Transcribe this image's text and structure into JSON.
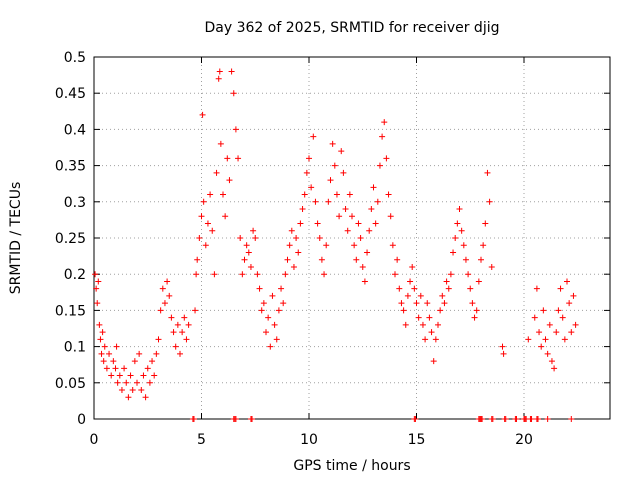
{
  "chart_data": {
    "type": "scatter",
    "title": "Day 362 of 2025, SRMTID for receiver djig",
    "xlabel": "GPS time / hours",
    "ylabel": "SRMTID / TECUs",
    "xlim": [
      0,
      24
    ],
    "ylim": [
      0,
      0.5
    ],
    "xticks": [
      0,
      5,
      10,
      15,
      20
    ],
    "xtick_labels": [
      "0",
      "5",
      "10",
      "15",
      "20"
    ],
    "yticks": [
      0,
      0.05,
      0.1,
      0.15,
      0.2,
      0.25,
      0.3,
      0.35,
      0.4,
      0.45,
      0.5
    ],
    "ytick_labels": [
      "0",
      "0.05",
      "0.1",
      "0.15",
      "0.2",
      "0.25",
      "0.3",
      "0.35",
      "0.4",
      "0.45",
      "0.5"
    ],
    "grid": true,
    "marker": "+",
    "marker_color": "#ff0000",
    "series": [
      {
        "name": "SRMTID",
        "points": [
          [
            0.05,
            0.2
          ],
          [
            0.1,
            0.18
          ],
          [
            0.15,
            0.16
          ],
          [
            0.2,
            0.19
          ],
          [
            0.25,
            0.13
          ],
          [
            0.3,
            0.11
          ],
          [
            0.35,
            0.09
          ],
          [
            0.4,
            0.12
          ],
          [
            0.45,
            0.08
          ],
          [
            0.5,
            0.1
          ],
          [
            0.6,
            0.07
          ],
          [
            0.7,
            0.09
          ],
          [
            0.8,
            0.06
          ],
          [
            0.9,
            0.08
          ],
          [
            1.0,
            0.07
          ],
          [
            1.05,
            0.1
          ],
          [
            1.1,
            0.05
          ],
          [
            1.2,
            0.06
          ],
          [
            1.3,
            0.04
          ],
          [
            1.4,
            0.07
          ],
          [
            1.5,
            0.05
          ],
          [
            1.6,
            0.03
          ],
          [
            1.7,
            0.06
          ],
          [
            1.8,
            0.04
          ],
          [
            1.9,
            0.08
          ],
          [
            2.0,
            0.05
          ],
          [
            2.1,
            0.09
          ],
          [
            2.2,
            0.04
          ],
          [
            2.3,
            0.06
          ],
          [
            2.4,
            0.03
          ],
          [
            2.5,
            0.07
          ],
          [
            2.6,
            0.05
          ],
          [
            2.7,
            0.08
          ],
          [
            2.8,
            0.06
          ],
          [
            2.9,
            0.09
          ],
          [
            3.0,
            0.11
          ],
          [
            3.1,
            0.15
          ],
          [
            3.2,
            0.18
          ],
          [
            3.3,
            0.16
          ],
          [
            3.4,
            0.19
          ],
          [
            3.5,
            0.17
          ],
          [
            3.6,
            0.14
          ],
          [
            3.7,
            0.12
          ],
          [
            3.8,
            0.1
          ],
          [
            3.9,
            0.13
          ],
          [
            4.0,
            0.09
          ],
          [
            4.1,
            0.12
          ],
          [
            4.2,
            0.14
          ],
          [
            4.3,
            0.11
          ],
          [
            4.4,
            0.13
          ],
          [
            4.7,
            0.15
          ],
          [
            4.75,
            0.2
          ],
          [
            4.8,
            0.22
          ],
          [
            4.9,
            0.25
          ],
          [
            5.0,
            0.28
          ],
          [
            5.05,
            0.42
          ],
          [
            5.1,
            0.3
          ],
          [
            5.2,
            0.24
          ],
          [
            5.3,
            0.27
          ],
          [
            5.4,
            0.31
          ],
          [
            5.5,
            0.26
          ],
          [
            5.6,
            0.2
          ],
          [
            5.7,
            0.34
          ],
          [
            5.8,
            0.47
          ],
          [
            5.85,
            0.48
          ],
          [
            5.9,
            0.38
          ],
          [
            6.0,
            0.31
          ],
          [
            6.1,
            0.28
          ],
          [
            6.2,
            0.36
          ],
          [
            6.3,
            0.33
          ],
          [
            6.4,
            0.48
          ],
          [
            6.5,
            0.45
          ],
          [
            6.6,
            0.4
          ],
          [
            6.7,
            0.36
          ],
          [
            6.8,
            0.25
          ],
          [
            6.9,
            0.2
          ],
          [
            7.0,
            0.22
          ],
          [
            7.1,
            0.24
          ],
          [
            7.2,
            0.23
          ],
          [
            7.3,
            0.21
          ],
          [
            7.4,
            0.26
          ],
          [
            7.5,
            0.25
          ],
          [
            7.6,
            0.2
          ],
          [
            7.7,
            0.18
          ],
          [
            7.8,
            0.15
          ],
          [
            7.9,
            0.16
          ],
          [
            8.0,
            0.12
          ],
          [
            8.1,
            0.14
          ],
          [
            8.2,
            0.1
          ],
          [
            8.3,
            0.17
          ],
          [
            8.4,
            0.13
          ],
          [
            8.5,
            0.11
          ],
          [
            8.6,
            0.15
          ],
          [
            8.7,
            0.18
          ],
          [
            8.8,
            0.16
          ],
          [
            8.9,
            0.2
          ],
          [
            9.0,
            0.22
          ],
          [
            9.1,
            0.24
          ],
          [
            9.2,
            0.26
          ],
          [
            9.3,
            0.21
          ],
          [
            9.4,
            0.25
          ],
          [
            9.5,
            0.23
          ],
          [
            9.6,
            0.27
          ],
          [
            9.7,
            0.29
          ],
          [
            9.8,
            0.31
          ],
          [
            9.9,
            0.34
          ],
          [
            10.0,
            0.36
          ],
          [
            10.1,
            0.32
          ],
          [
            10.2,
            0.39
          ],
          [
            10.3,
            0.3
          ],
          [
            10.4,
            0.27
          ],
          [
            10.5,
            0.25
          ],
          [
            10.6,
            0.22
          ],
          [
            10.7,
            0.2
          ],
          [
            10.8,
            0.24
          ],
          [
            10.9,
            0.3
          ],
          [
            11.0,
            0.33
          ],
          [
            11.1,
            0.38
          ],
          [
            11.2,
            0.35
          ],
          [
            11.3,
            0.31
          ],
          [
            11.4,
            0.28
          ],
          [
            11.5,
            0.37
          ],
          [
            11.6,
            0.34
          ],
          [
            11.7,
            0.29
          ],
          [
            11.8,
            0.26
          ],
          [
            11.9,
            0.31
          ],
          [
            12.0,
            0.28
          ],
          [
            12.1,
            0.24
          ],
          [
            12.2,
            0.22
          ],
          [
            12.3,
            0.27
          ],
          [
            12.4,
            0.25
          ],
          [
            12.5,
            0.21
          ],
          [
            12.6,
            0.19
          ],
          [
            12.7,
            0.23
          ],
          [
            12.8,
            0.26
          ],
          [
            12.9,
            0.29
          ],
          [
            13.0,
            0.32
          ],
          [
            13.1,
            0.27
          ],
          [
            13.2,
            0.3
          ],
          [
            13.3,
            0.35
          ],
          [
            13.4,
            0.39
          ],
          [
            13.5,
            0.41
          ],
          [
            13.6,
            0.36
          ],
          [
            13.7,
            0.31
          ],
          [
            13.8,
            0.28
          ],
          [
            13.9,
            0.24
          ],
          [
            14.0,
            0.2
          ],
          [
            14.1,
            0.22
          ],
          [
            14.2,
            0.18
          ],
          [
            14.3,
            0.16
          ],
          [
            14.4,
            0.15
          ],
          [
            14.5,
            0.13
          ],
          [
            14.6,
            0.17
          ],
          [
            14.7,
            0.19
          ],
          [
            14.8,
            0.21
          ],
          [
            14.9,
            0.18
          ],
          [
            15.0,
            0.16
          ],
          [
            15.1,
            0.14
          ],
          [
            15.2,
            0.17
          ],
          [
            15.3,
            0.13
          ],
          [
            15.4,
            0.11
          ],
          [
            15.5,
            0.16
          ],
          [
            15.6,
            0.14
          ],
          [
            15.7,
            0.12
          ],
          [
            15.8,
            0.08
          ],
          [
            15.9,
            0.11
          ],
          [
            16.0,
            0.13
          ],
          [
            16.1,
            0.15
          ],
          [
            16.2,
            0.17
          ],
          [
            16.3,
            0.16
          ],
          [
            16.4,
            0.19
          ],
          [
            16.5,
            0.18
          ],
          [
            16.6,
            0.2
          ],
          [
            16.7,
            0.23
          ],
          [
            16.8,
            0.25
          ],
          [
            16.9,
            0.27
          ],
          [
            17.0,
            0.29
          ],
          [
            17.1,
            0.26
          ],
          [
            17.2,
            0.24
          ],
          [
            17.3,
            0.22
          ],
          [
            17.4,
            0.2
          ],
          [
            17.5,
            0.18
          ],
          [
            17.6,
            0.16
          ],
          [
            17.7,
            0.14
          ],
          [
            17.8,
            0.15
          ],
          [
            17.9,
            0.19
          ],
          [
            18.0,
            0.22
          ],
          [
            18.1,
            0.24
          ],
          [
            18.2,
            0.27
          ],
          [
            18.3,
            0.34
          ],
          [
            18.4,
            0.3
          ],
          [
            18.5,
            0.21
          ],
          [
            19.0,
            0.1
          ],
          [
            19.05,
            0.09
          ],
          [
            20.2,
            0.11
          ],
          [
            20.5,
            0.14
          ],
          [
            20.6,
            0.18
          ],
          [
            20.7,
            0.12
          ],
          [
            20.8,
            0.1
          ],
          [
            20.9,
            0.15
          ],
          [
            21.0,
            0.11
          ],
          [
            21.1,
            0.09
          ],
          [
            21.2,
            0.13
          ],
          [
            21.3,
            0.08
          ],
          [
            21.4,
            0.07
          ],
          [
            21.5,
            0.12
          ],
          [
            21.6,
            0.15
          ],
          [
            21.7,
            0.18
          ],
          [
            21.8,
            0.14
          ],
          [
            21.9,
            0.11
          ],
          [
            22.0,
            0.19
          ],
          [
            22.1,
            0.16
          ],
          [
            22.2,
            0.12
          ],
          [
            22.3,
            0.17
          ],
          [
            22.4,
            0.13
          ],
          [
            4.6,
            0
          ],
          [
            4.65,
            0
          ],
          [
            6.5,
            0
          ],
          [
            6.55,
            0
          ],
          [
            6.6,
            0
          ],
          [
            7.3,
            0
          ],
          [
            7.35,
            0
          ],
          [
            14.9,
            0
          ],
          [
            14.95,
            0
          ],
          [
            17.9,
            0
          ],
          [
            17.95,
            0
          ],
          [
            18.0,
            0
          ],
          [
            18.05,
            0
          ],
          [
            18.5,
            0
          ],
          [
            18.55,
            0
          ],
          [
            19.1,
            0
          ],
          [
            19.15,
            0
          ],
          [
            19.6,
            0
          ],
          [
            19.65,
            0
          ],
          [
            20.0,
            0
          ],
          [
            20.05,
            0
          ],
          [
            20.1,
            0
          ],
          [
            20.3,
            0
          ],
          [
            20.35,
            0
          ],
          [
            20.6,
            0
          ],
          [
            20.65,
            0
          ],
          [
            21.1,
            0
          ],
          [
            22.2,
            0
          ]
        ]
      }
    ]
  }
}
